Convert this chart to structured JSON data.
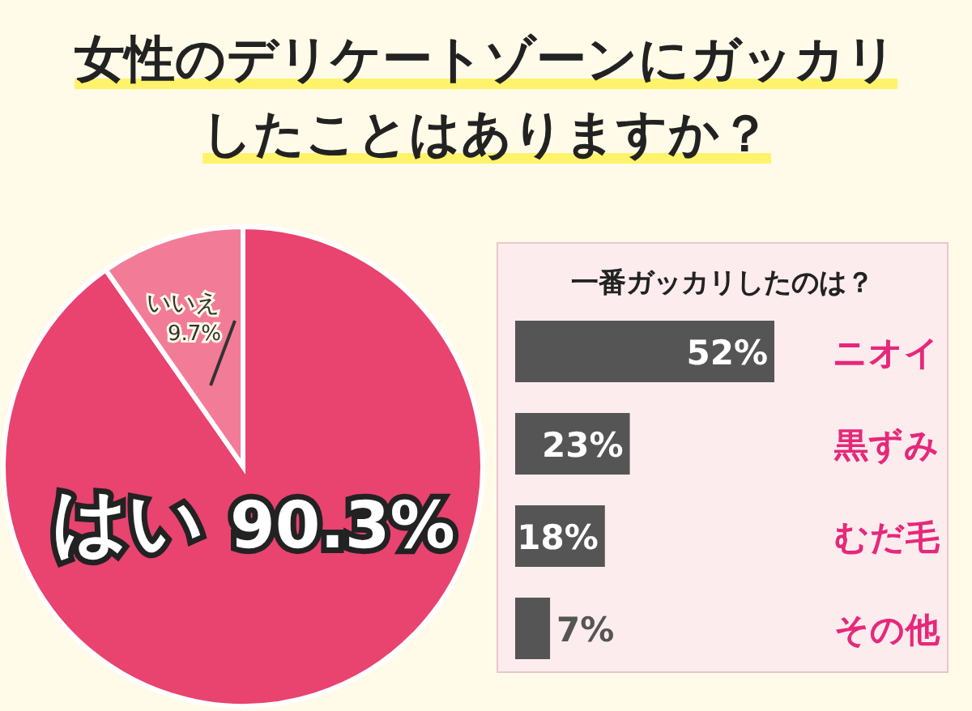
{
  "chart_data": [
    {
      "type": "pie",
      "title": "女性のデリケートゾーンにガッカリしたことはありますか？",
      "categories": [
        "はい",
        "いいえ"
      ],
      "values": [
        90.3,
        9.7
      ],
      "colors": [
        "#e9436f",
        "#f27c98"
      ],
      "value_labels": [
        "90.3%",
        "9.7%"
      ]
    },
    {
      "type": "bar",
      "orientation": "horizontal",
      "title": "一番ガッカリしたのは？",
      "categories": [
        "ニオイ",
        "黒ずみ",
        "むだ毛",
        "その他"
      ],
      "values": [
        52,
        23,
        18,
        7
      ],
      "color": "#555555",
      "value_labels": [
        "52%",
        "23%",
        "18%",
        "7%"
      ]
    }
  ]
}
